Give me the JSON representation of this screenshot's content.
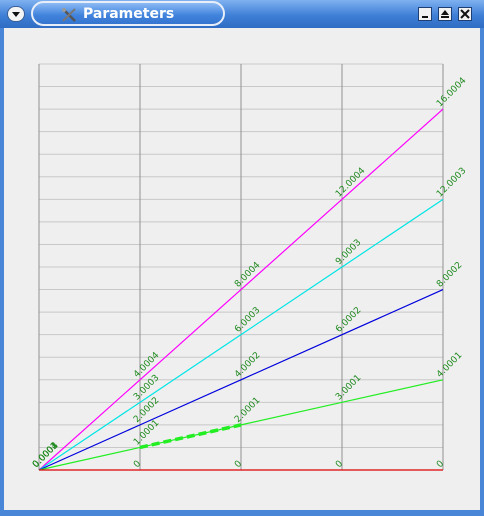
{
  "window": {
    "title": "Parameters",
    "icons": {
      "menu": "chevron-down-icon",
      "app": "tools-icon",
      "minimize": "minimize-icon",
      "maximize": "maximize-icon",
      "close": "close-icon"
    },
    "colors": {
      "titlebar": "#3f7fd6",
      "client": "#efefef",
      "label": "#1f8a1f"
    }
  },
  "chart_data": {
    "type": "line",
    "title": "",
    "xlabel": "",
    "ylabel": "",
    "x": [
      0,
      1,
      2,
      3,
      4
    ],
    "xlim": [
      0,
      4
    ],
    "ylim": [
      0,
      18
    ],
    "grid": true,
    "series": [
      {
        "color": "#ff00ff",
        "values": [
          0,
          4,
          8,
          12,
          16
        ],
        "labels": [
          "0.0004",
          "4.0004",
          "8.0004",
          "12.0004",
          "16.0004"
        ]
      },
      {
        "color": "#00e5e5",
        "values": [
          0,
          3,
          6,
          9,
          12
        ],
        "labels": [
          "0.0003",
          "3.0003",
          "6.0003",
          "9.0003",
          "12.0003"
        ]
      },
      {
        "color": "#0000dd",
        "values": [
          0,
          2,
          4,
          6,
          8
        ],
        "labels": [
          "0.0002",
          "2.0002",
          "4.0002",
          "6.0002",
          "8.0002"
        ]
      },
      {
        "color": "#22ee22",
        "values": [
          0,
          1,
          2,
          3,
          4
        ],
        "labels": [
          "0.0001",
          "1.0001",
          "2.0001",
          "3.0001",
          "4.0001"
        ]
      },
      {
        "color": "#dd0000",
        "values": [
          0,
          0,
          0,
          0,
          0
        ],
        "labels": [
          "0",
          "0",
          "0",
          "0",
          "0"
        ]
      }
    ],
    "highlight": {
      "x": [
        1,
        2
      ],
      "values": [
        1,
        2
      ],
      "color": "#22ee22"
    }
  }
}
